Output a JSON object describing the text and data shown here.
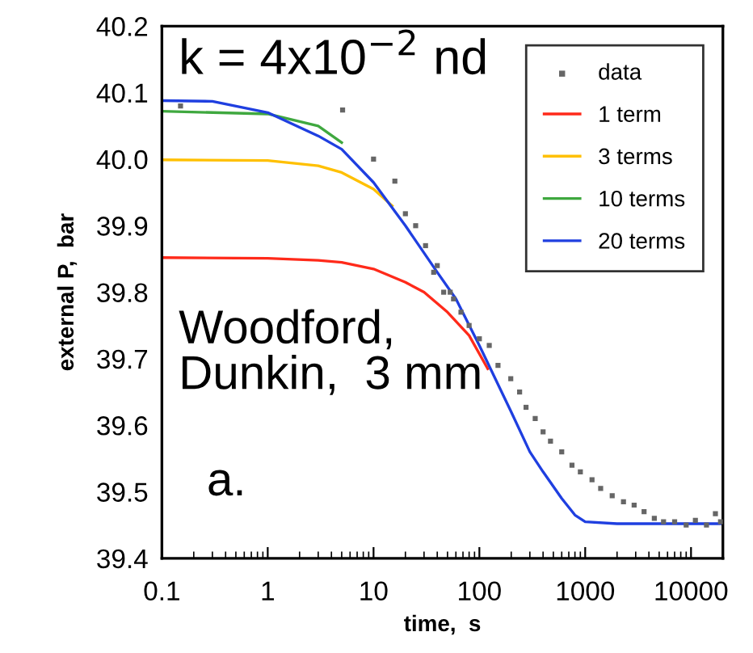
{
  "chart_data": {
    "type": "line",
    "xlabel": "time,  s",
    "ylabel": "external P,  bar",
    "annotations": [
      "k = 4x10$^{−2}$ nd",
      "Woodford,\nDunkin,  3 mm",
      "a."
    ],
    "log": "x",
    "xlim": [
      0.1,
      20000
    ],
    "ylim": [
      39.4,
      40.2
    ],
    "xticks": [
      0.1,
      1,
      10,
      100,
      1000,
      10000
    ],
    "yticks": [
      39.4,
      39.5,
      39.6,
      39.7,
      39.8,
      39.9,
      {
        "value": 40.0,
        "label": "40.0"
      },
      40.1,
      40.2
    ],
    "grid": false,
    "legend": "top right",
    "series": [
      {
        "name": "data",
        "type": "scatter",
        "marker": "square",
        "color": "#666666",
        "x": [
          0.15,
          5.1,
          10,
          15.9,
          20,
          25,
          31,
          37,
          40,
          46,
          53,
          57,
          67,
          80,
          100,
          124,
          150,
          198,
          240,
          276,
          337,
          400,
          470,
          600,
          750,
          900,
          1160,
          1400,
          1800,
          2300,
          2900,
          3600,
          4500,
          5500,
          7000,
          9000,
          11000,
          14000,
          17000,
          19000
        ],
        "values": [
          40.08,
          40.074,
          40.0,
          39.967,
          39.918,
          39.9,
          39.87,
          39.83,
          39.84,
          39.8,
          39.8,
          39.79,
          39.77,
          39.75,
          39.73,
          39.72,
          39.69,
          39.67,
          39.65,
          39.627,
          39.61,
          39.59,
          39.576,
          39.56,
          39.54,
          39.53,
          39.518,
          39.505,
          39.494,
          39.485,
          39.48,
          39.47,
          39.46,
          39.455,
          39.455,
          39.45,
          39.457,
          39.45,
          39.467,
          39.455
        ]
      },
      {
        "name": "1 term",
        "color": "#ff2a1a",
        "marker": "none",
        "line_style": "solid",
        "x": [
          0.1,
          1,
          3,
          5,
          10,
          20,
          30,
          50,
          80,
          120
        ],
        "values": [
          39.852,
          39.851,
          39.848,
          39.845,
          39.835,
          39.815,
          39.8,
          39.77,
          39.735,
          39.685
        ]
      },
      {
        "name": "3 terms",
        "color": "#ffc000",
        "marker": "none",
        "line_style": "solid",
        "x": [
          0.1,
          1,
          3,
          5,
          10,
          15
        ],
        "values": [
          39.999,
          39.998,
          39.99,
          39.98,
          39.955,
          39.93
        ]
      },
      {
        "name": "10 terms",
        "color": "#3fa83f",
        "marker": "none",
        "line_style": "solid",
        "x": [
          0.1,
          1,
          3,
          5
        ],
        "values": [
          40.072,
          40.068,
          40.05,
          40.025
        ]
      },
      {
        "name": "20 terms",
        "color": "#1f3fe0",
        "marker": "none",
        "line_style": "solid",
        "x": [
          0.1,
          0.3,
          1,
          3,
          5,
          10,
          20,
          40,
          60,
          100,
          200,
          300,
          400,
          600,
          800,
          1000,
          2000,
          20000
        ],
        "values": [
          40.088,
          40.087,
          40.07,
          40.035,
          40.015,
          39.965,
          39.9,
          39.83,
          39.79,
          39.72,
          39.62,
          39.56,
          39.53,
          39.49,
          39.465,
          39.455,
          39.452,
          39.452
        ]
      }
    ]
  }
}
